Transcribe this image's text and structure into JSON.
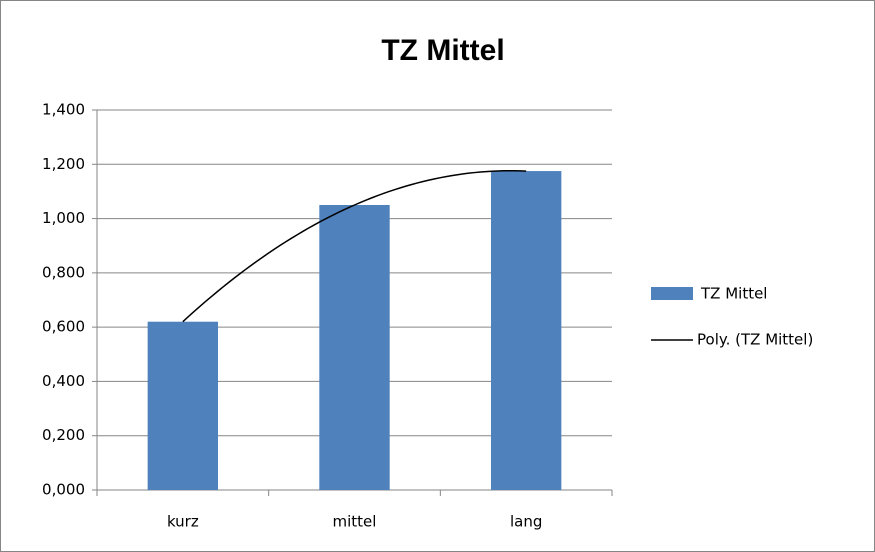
{
  "chart_data": {
    "type": "bar",
    "title": "TZ Mittel",
    "categories": [
      "kurz",
      "mittel",
      "lang"
    ],
    "series": [
      {
        "name": "TZ Mittel",
        "color": "#4f81bd",
        "values": [
          0.62,
          1.05,
          1.175
        ]
      }
    ],
    "trendline": {
      "name": "Poly. (TZ Mittel)",
      "type": "polynomial",
      "color": "#000000"
    },
    "ylim": [
      0,
      1.4
    ],
    "yticks": [
      {
        "value": 0,
        "label": "0,000"
      },
      {
        "value": 0.2,
        "label": "0,200"
      },
      {
        "value": 0.4,
        "label": "0,400"
      },
      {
        "value": 0.6,
        "label": "0,600"
      },
      {
        "value": 0.8,
        "label": "0,800"
      },
      {
        "value": 1.0,
        "label": "1,000"
      },
      {
        "value": 1.2,
        "label": "1,200"
      },
      {
        "value": 1.4,
        "label": "1,400"
      }
    ],
    "grid": true,
    "legend": "right"
  }
}
